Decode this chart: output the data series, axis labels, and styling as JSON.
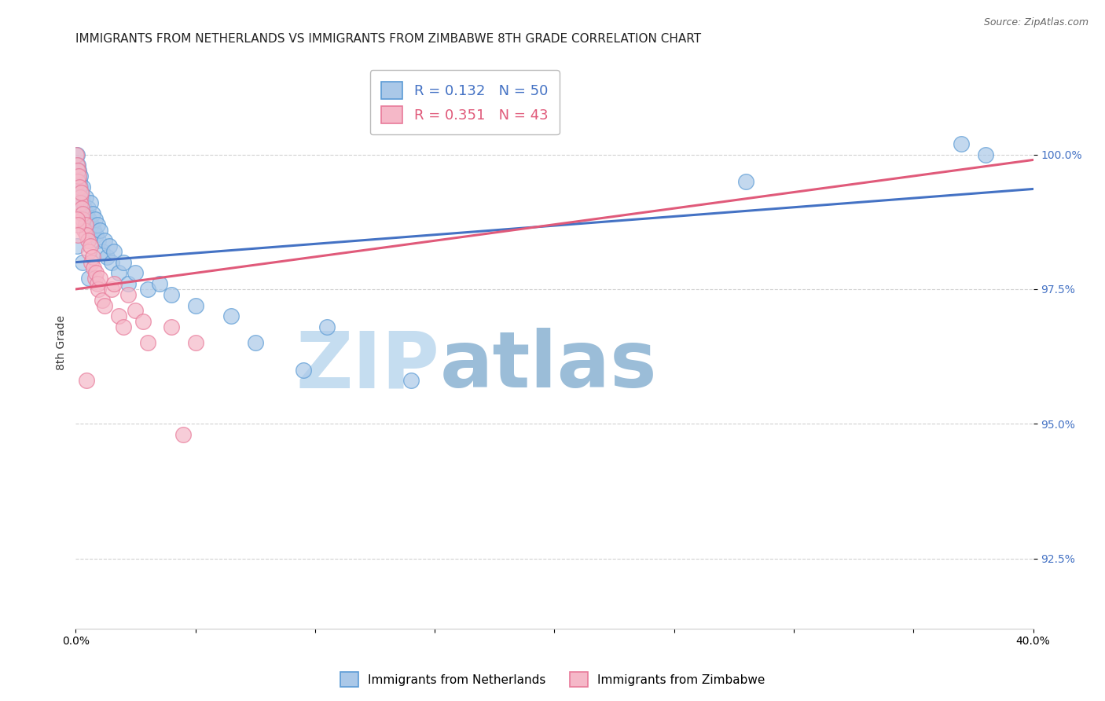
{
  "title": "IMMIGRANTS FROM NETHERLANDS VS IMMIGRANTS FROM ZIMBABWE 8TH GRADE CORRELATION CHART",
  "source": "Source: ZipAtlas.com",
  "ylabel": "8th Grade",
  "xlim": [
    0.0,
    40.0
  ],
  "ylim": [
    91.2,
    101.8
  ],
  "yticks": [
    92.5,
    95.0,
    97.5,
    100.0
  ],
  "ytick_labels": [
    "92.5%",
    "95.0%",
    "97.5%",
    "100.0%"
  ],
  "xtick_vals": [
    0,
    5,
    10,
    15,
    20,
    25,
    30,
    35,
    40
  ],
  "xtick_labels": [
    "0.0%",
    "",
    "",
    "",
    "",
    "",
    "",
    "",
    "40.0%"
  ],
  "legend_blue_r": "R = 0.132",
  "legend_blue_n": "N = 50",
  "legend_pink_r": "R = 0.351",
  "legend_pink_n": "N = 43",
  "blue_color": "#aac8e8",
  "pink_color": "#f5b8c8",
  "blue_edge_color": "#5b9bd5",
  "pink_edge_color": "#e87a9a",
  "blue_line_color": "#4472c4",
  "pink_line_color": "#e05a7a",
  "watermark_zip_color": "#c5ddf0",
  "watermark_atlas_color": "#9bbdd8",
  "bottom_legend_blue": "Immigrants from Netherlands",
  "bottom_legend_pink": "Immigrants from Zimbabwe",
  "blue_x": [
    0.05,
    0.08,
    0.1,
    0.12,
    0.15,
    0.18,
    0.2,
    0.22,
    0.25,
    0.28,
    0.3,
    0.35,
    0.4,
    0.45,
    0.5,
    0.55,
    0.6,
    0.65,
    0.7,
    0.75,
    0.8,
    0.85,
    0.9,
    0.95,
    1.0,
    1.1,
    1.2,
    1.3,
    1.4,
    1.5,
    1.6,
    1.8,
    2.0,
    2.2,
    2.5,
    3.0,
    3.5,
    4.0,
    5.0,
    6.5,
    0.05,
    0.3,
    0.55,
    7.5,
    9.5,
    10.5,
    14.0,
    28.0,
    37.0,
    38.0
  ],
  "blue_y": [
    100.0,
    99.8,
    99.6,
    99.7,
    99.5,
    99.4,
    99.6,
    99.3,
    99.2,
    99.4,
    99.1,
    99.0,
    99.2,
    98.9,
    99.0,
    98.8,
    99.1,
    98.7,
    98.9,
    98.6,
    98.8,
    98.5,
    98.7,
    98.4,
    98.6,
    98.2,
    98.4,
    98.1,
    98.3,
    98.0,
    98.2,
    97.8,
    98.0,
    97.6,
    97.8,
    97.5,
    97.6,
    97.4,
    97.2,
    97.0,
    98.3,
    98.0,
    97.7,
    96.5,
    96.0,
    96.8,
    95.8,
    99.5,
    100.2,
    100.0
  ],
  "pink_x": [
    0.03,
    0.05,
    0.08,
    0.1,
    0.12,
    0.15,
    0.18,
    0.2,
    0.22,
    0.25,
    0.28,
    0.3,
    0.35,
    0.4,
    0.45,
    0.5,
    0.55,
    0.6,
    0.65,
    0.7,
    0.75,
    0.8,
    0.85,
    0.9,
    0.95,
    1.0,
    1.1,
    1.2,
    1.5,
    1.8,
    2.0,
    2.5,
    3.0,
    4.0,
    5.0,
    2.2,
    1.6,
    2.8,
    0.05,
    0.08,
    0.1,
    0.45,
    4.5
  ],
  "pink_y": [
    100.0,
    99.8,
    99.7,
    99.5,
    99.6,
    99.4,
    99.2,
    99.1,
    99.3,
    99.0,
    98.8,
    98.9,
    98.6,
    98.7,
    98.5,
    98.4,
    98.2,
    98.3,
    98.0,
    98.1,
    97.9,
    97.7,
    97.8,
    97.6,
    97.5,
    97.7,
    97.3,
    97.2,
    97.5,
    97.0,
    96.8,
    97.1,
    96.5,
    96.8,
    96.5,
    97.4,
    97.6,
    96.9,
    98.8,
    98.7,
    98.5,
    95.8,
    94.8
  ],
  "title_fontsize": 11,
  "axis_label_fontsize": 10,
  "tick_fontsize": 10,
  "legend_fontsize": 13
}
